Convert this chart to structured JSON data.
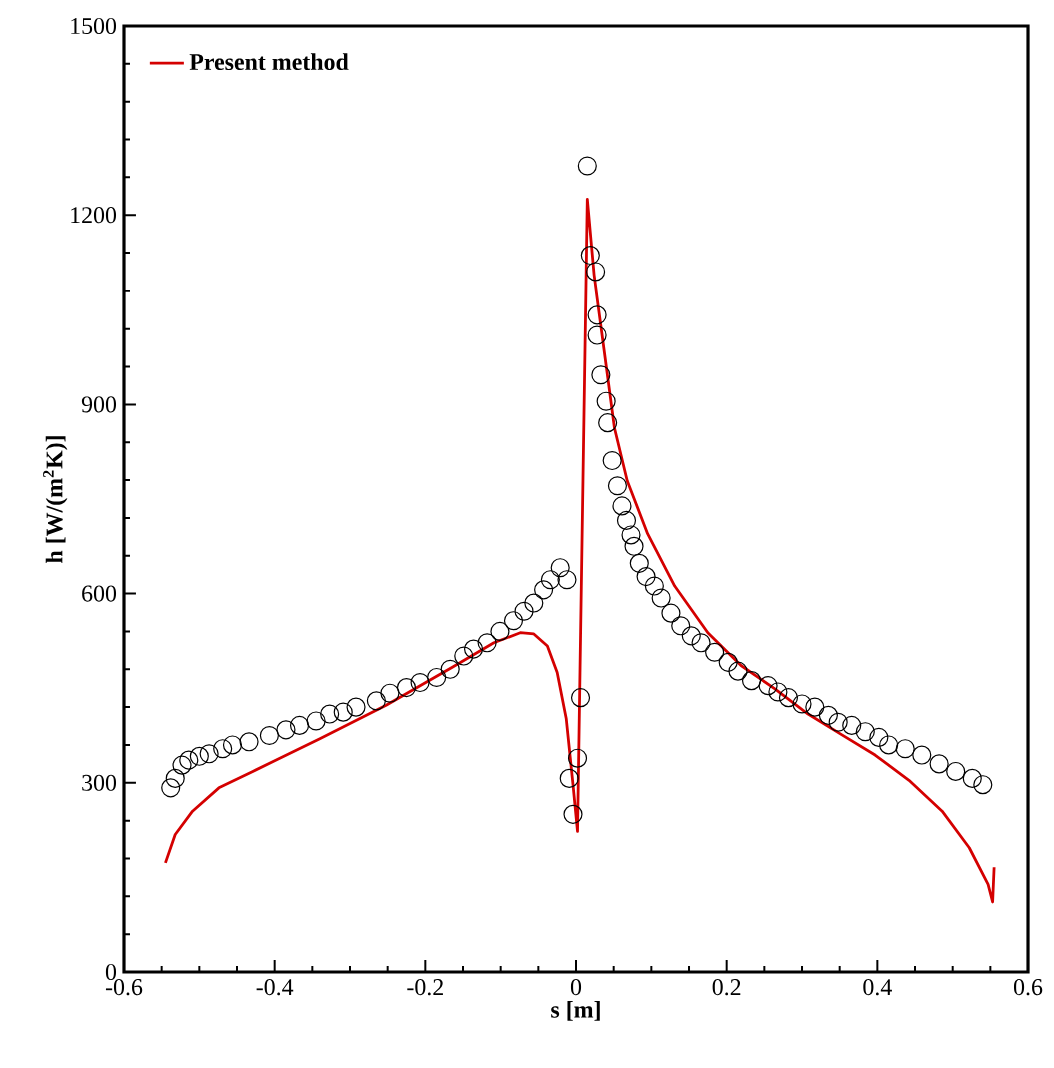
{
  "chart_data": {
    "type": "line",
    "xlabel": "s [m]",
    "ylabel": "h [W/(m$^{2}$K)]",
    "xlim": [
      -0.6,
      0.6
    ],
    "ylim": [
      0,
      1500
    ],
    "xticks": [
      -0.6,
      -0.4,
      -0.2,
      0,
      0.2,
      0.4,
      0.6
    ],
    "yticks": [
      0,
      300,
      600,
      900,
      1200,
      1500
    ],
    "legend": "top left",
    "grid": false,
    "series": [
      {
        "type": "scatter",
        "marker": "circle",
        "color": "#000000",
        "x": [
          -0.538,
          -0.532,
          -0.523,
          -0.514,
          -0.5,
          -0.487,
          -0.469,
          -0.456,
          -0.434,
          -0.407,
          -0.385,
          -0.367,
          -0.345,
          -0.327,
          -0.309,
          -0.292,
          -0.265,
          -0.247,
          -0.225,
          -0.207,
          -0.185,
          -0.167,
          -0.149,
          -0.136,
          -0.118,
          -0.101,
          -0.083,
          -0.069,
          -0.056,
          -0.043,
          -0.034,
          -0.021,
          -0.012,
          -0.009,
          -0.004,
          0.002,
          0.006,
          0.015,
          0.019,
          0.026,
          0.028,
          0.028,
          0.033,
          0.04,
          0.042,
          0.048,
          0.055,
          0.061,
          0.067,
          0.073,
          0.077,
          0.084,
          0.093,
          0.104,
          0.113,
          0.126,
          0.139,
          0.153,
          0.166,
          0.184,
          0.202,
          0.215,
          0.233,
          0.255,
          0.268,
          0.282,
          0.3,
          0.317,
          0.335,
          0.348,
          0.366,
          0.384,
          0.402,
          0.415,
          0.437,
          0.459,
          0.482,
          0.504,
          0.526,
          0.54
        ],
        "values": [
          292,
          307,
          328,
          336,
          342,
          346,
          354,
          360,
          365,
          375,
          384,
          391,
          398,
          409,
          412,
          420,
          430,
          442,
          451,
          459,
          467,
          480,
          501,
          512,
          522,
          540,
          557,
          572,
          585,
          606,
          622,
          641,
          622,
          307,
          250,
          339,
          435,
          1278,
          1136,
          1110,
          1042,
          1010,
          947,
          905,
          871,
          811,
          771,
          739,
          716,
          693,
          675,
          648,
          627,
          612,
          593,
          569,
          549,
          533,
          522,
          507,
          491,
          477,
          462,
          454,
          444,
          435,
          425,
          420,
          407,
          396,
          391,
          381,
          372,
          360,
          354,
          344,
          330,
          318,
          307,
          297
        ]
      },
      {
        "name": "Present method",
        "color": "#d40000",
        "x": [
          -0.545,
          -0.532,
          -0.509,
          -0.474,
          -0.429,
          -0.34,
          -0.252,
          -0.163,
          -0.109,
          -0.074,
          -0.056,
          -0.038,
          -0.025,
          -0.013,
          -0.004,
          0.002,
          0.015,
          0.024,
          0.037,
          0.051,
          0.068,
          0.095,
          0.131,
          0.175,
          0.219,
          0.264,
          0.308,
          0.353,
          0.397,
          0.442,
          0.486,
          0.522,
          0.547,
          0.553,
          0.555
        ],
        "values": [
          173,
          218,
          255,
          292,
          318,
          370,
          423,
          484,
          522,
          538,
          536,
          517,
          475,
          402,
          297,
          223,
          1225,
          1105,
          989,
          863,
          779,
          695,
          612,
          538,
          486,
          449,
          409,
          376,
          344,
          304,
          255,
          197,
          139,
          111,
          166
        ]
      }
    ]
  }
}
